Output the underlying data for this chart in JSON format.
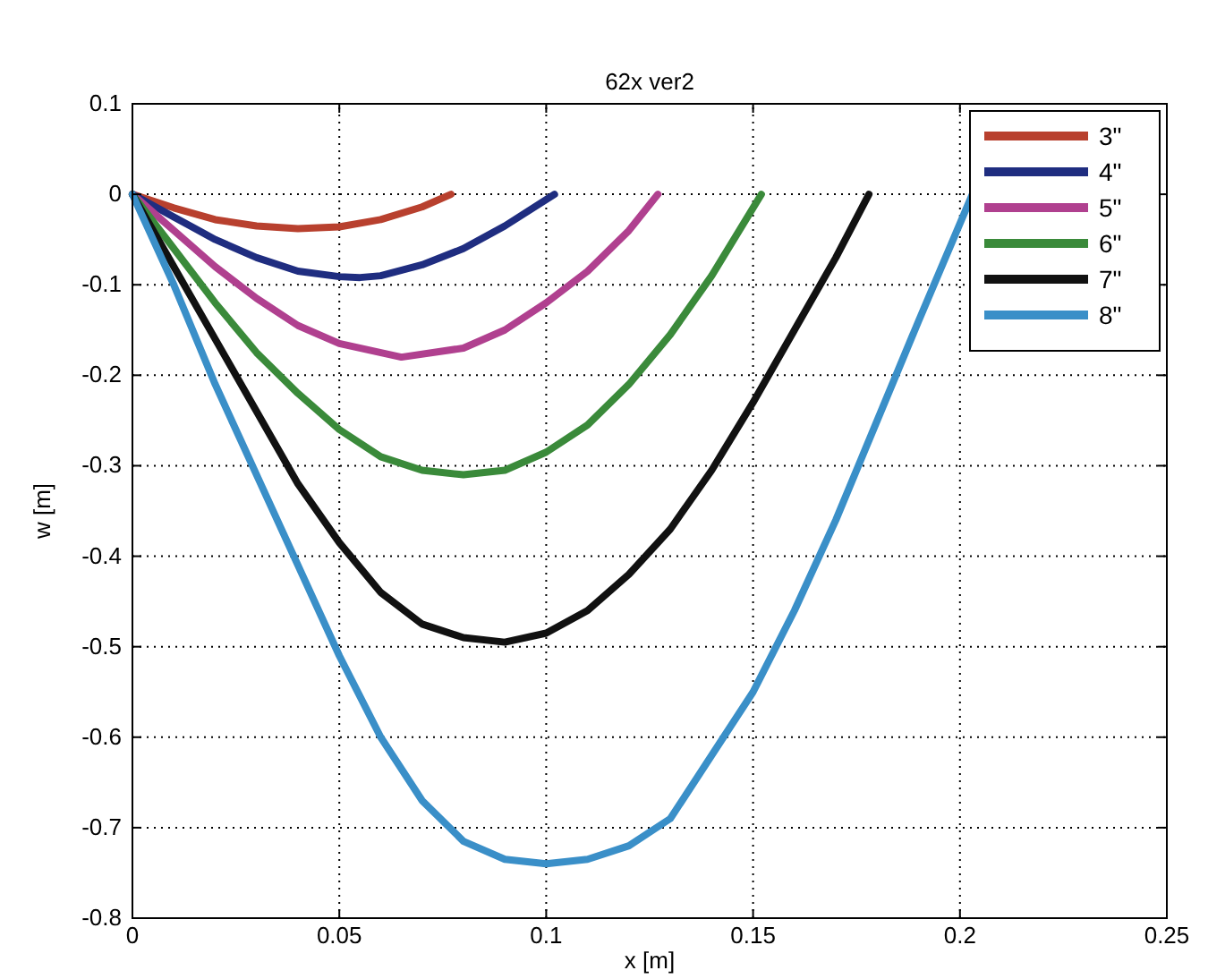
{
  "chart_data": {
    "type": "line",
    "title": "62x ver2",
    "xlabel": "x [m]",
    "ylabel": "w [m]",
    "xlim": [
      0,
      0.25
    ],
    "xticks": [
      0,
      0.05,
      0.1,
      0.15,
      0.2,
      0.25
    ],
    "ylim": [
      -0.8,
      0.1
    ],
    "yticks": [
      -0.8,
      -0.7,
      -0.6,
      -0.5,
      -0.4,
      -0.3,
      -0.2,
      -0.1,
      0,
      0.1
    ],
    "grid": true,
    "legend": "top right",
    "line_style": "solid",
    "series": [
      {
        "name": "3\"",
        "color": "#b8402e",
        "x": [
          0,
          0.01,
          0.02,
          0.03,
          0.04,
          0.05,
          0.06,
          0.07,
          0.077
        ],
        "values": [
          0,
          -0.015,
          -0.028,
          -0.035,
          -0.038,
          -0.036,
          -0.028,
          -0.014,
          0
        ]
      },
      {
        "name": "4\"",
        "color": "#1f2d80",
        "x": [
          0,
          0.01,
          0.02,
          0.03,
          0.04,
          0.05,
          0.055,
          0.06,
          0.07,
          0.08,
          0.09,
          0.102
        ],
        "values": [
          0,
          -0.025,
          -0.05,
          -0.07,
          -0.085,
          -0.091,
          -0.092,
          -0.09,
          -0.078,
          -0.06,
          -0.035,
          0
        ]
      },
      {
        "name": "5\"",
        "color": "#b0408f",
        "x": [
          0,
          0.01,
          0.02,
          0.03,
          0.04,
          0.05,
          0.065,
          0.08,
          0.09,
          0.1,
          0.11,
          0.12,
          0.127
        ],
        "values": [
          0,
          -0.04,
          -0.08,
          -0.115,
          -0.145,
          -0.165,
          -0.18,
          -0.17,
          -0.15,
          -0.12,
          -0.085,
          -0.04,
          0
        ]
      },
      {
        "name": "6\"",
        "color": "#3a8a3a",
        "x": [
          0,
          0.01,
          0.02,
          0.03,
          0.04,
          0.05,
          0.06,
          0.07,
          0.08,
          0.09,
          0.1,
          0.11,
          0.12,
          0.13,
          0.14,
          0.152
        ],
        "values": [
          0,
          -0.06,
          -0.12,
          -0.175,
          -0.22,
          -0.26,
          -0.29,
          -0.305,
          -0.31,
          -0.305,
          -0.285,
          -0.255,
          -0.21,
          -0.155,
          -0.09,
          0
        ]
      },
      {
        "name": "7\"",
        "color": "#111111",
        "x": [
          0,
          0.01,
          0.02,
          0.03,
          0.04,
          0.05,
          0.06,
          0.07,
          0.08,
          0.09,
          0.1,
          0.11,
          0.12,
          0.13,
          0.14,
          0.15,
          0.16,
          0.17,
          0.178
        ],
        "values": [
          0,
          -0.08,
          -0.16,
          -0.24,
          -0.32,
          -0.385,
          -0.44,
          -0.475,
          -0.49,
          -0.495,
          -0.485,
          -0.46,
          -0.42,
          -0.37,
          -0.305,
          -0.23,
          -0.15,
          -0.07,
          0
        ]
      },
      {
        "name": "8\"",
        "color": "#3a8fc8",
        "x": [
          0,
          0.01,
          0.02,
          0.03,
          0.04,
          0.05,
          0.06,
          0.07,
          0.08,
          0.09,
          0.1,
          0.11,
          0.12,
          0.13,
          0.14,
          0.15,
          0.16,
          0.17,
          0.18,
          0.19,
          0.203
        ],
        "values": [
          0,
          -0.1,
          -0.21,
          -0.31,
          -0.41,
          -0.51,
          -0.6,
          -0.67,
          -0.715,
          -0.735,
          -0.74,
          -0.735,
          -0.72,
          -0.69,
          -0.62,
          -0.55,
          -0.46,
          -0.36,
          -0.25,
          -0.14,
          0
        ]
      }
    ]
  }
}
